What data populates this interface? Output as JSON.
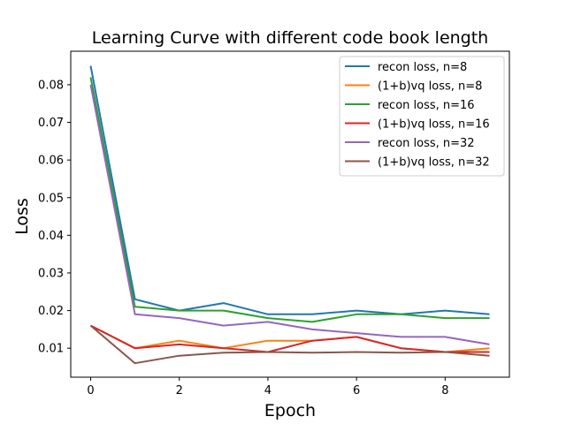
{
  "chart_data": {
    "type": "line",
    "title": "Learning Curve with different code book length",
    "xlabel": "Epoch",
    "ylabel": "Loss",
    "x": [
      0,
      1,
      2,
      3,
      4,
      5,
      6,
      7,
      8,
      9
    ],
    "xlim": [
      -0.45,
      9.45
    ],
    "ylim": [
      0.0023,
      0.0889
    ],
    "xticks": [
      0,
      2,
      4,
      6,
      8
    ],
    "xtick_labels": [
      "0",
      "2",
      "4",
      "6",
      "8"
    ],
    "yticks": [
      0.01,
      0.02,
      0.03,
      0.04,
      0.05,
      0.06,
      0.07,
      0.08
    ],
    "ytick_labels": [
      "0.01",
      "0.02",
      "0.03",
      "0.04",
      "0.05",
      "0.06",
      "0.07",
      "0.08"
    ],
    "grid": false,
    "legend_position": "top-right",
    "series": [
      {
        "name": "recon loss, n=8",
        "color": "#1f77b4",
        "values": [
          0.085,
          0.023,
          0.02,
          0.022,
          0.019,
          0.019,
          0.02,
          0.019,
          0.02,
          0.019
        ]
      },
      {
        "name": "(1+b)vq loss, n=8",
        "color": "#ff7f0e",
        "values": [
          0.016,
          0.01,
          0.012,
          0.01,
          0.012,
          0.012,
          0.013,
          0.01,
          0.009,
          0.01
        ]
      },
      {
        "name": "recon loss, n=16",
        "color": "#2ca02c",
        "values": [
          0.082,
          0.021,
          0.02,
          0.02,
          0.018,
          0.017,
          0.019,
          0.019,
          0.018,
          0.018
        ]
      },
      {
        "name": "(1+b)vq loss, n=16",
        "color": "#d62728",
        "values": [
          0.016,
          0.01,
          0.011,
          0.01,
          0.009,
          0.012,
          0.013,
          0.01,
          0.009,
          0.009
        ]
      },
      {
        "name": "recon loss, n=32",
        "color": "#9467bd",
        "values": [
          0.08,
          0.019,
          0.018,
          0.016,
          0.017,
          0.015,
          0.014,
          0.013,
          0.013,
          0.011
        ]
      },
      {
        "name": "(1+b)vq loss, n=32",
        "color": "#8c564b",
        "values": [
          0.016,
          0.006,
          0.008,
          0.0088,
          0.009,
          0.0088,
          0.009,
          0.0088,
          0.009,
          0.008
        ]
      }
    ]
  }
}
